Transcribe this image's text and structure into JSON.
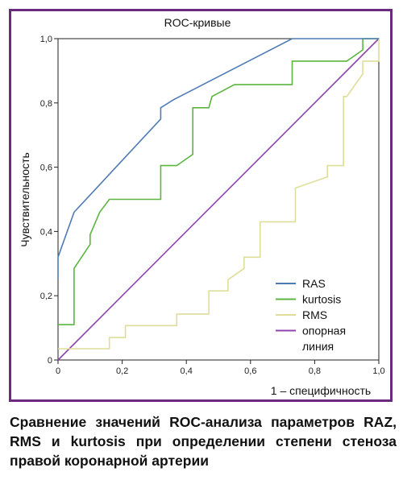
{
  "chart_data": {
    "type": "line",
    "title": "ROC-кривые",
    "xlabel": "1 – специфичность",
    "ylabel": "Чувствительность",
    "xlim": [
      0,
      1
    ],
    "ylim": [
      0,
      1
    ],
    "x_ticks": [
      "0",
      "0,2",
      "0,4",
      "0,6",
      "0,8",
      "1,0"
    ],
    "y_ticks": [
      "0",
      "0,2",
      "0,4",
      "0,6",
      "0,8",
      "1,0"
    ],
    "grid": false,
    "legend_position": "bottom-right",
    "series": [
      {
        "name": "RAS",
        "color": "#4f7bb5",
        "points": [
          [
            0,
            0.25
          ],
          [
            0,
            0.32
          ],
          [
            0.05,
            0.46
          ],
          [
            0.32,
            0.75
          ],
          [
            0.32,
            0.785
          ],
          [
            0.36,
            0.81
          ],
          [
            0.73,
            1.0
          ],
          [
            1.0,
            1.0
          ]
        ]
      },
      {
        "name": "kurtosis",
        "color": "#5cb53f",
        "points": [
          [
            0,
            0.11
          ],
          [
            0.05,
            0.11
          ],
          [
            0.05,
            0.285
          ],
          [
            0.1,
            0.36
          ],
          [
            0.1,
            0.39
          ],
          [
            0.13,
            0.46
          ],
          [
            0.16,
            0.5
          ],
          [
            0.32,
            0.5
          ],
          [
            0.32,
            0.605
          ],
          [
            0.37,
            0.605
          ],
          [
            0.42,
            0.64
          ],
          [
            0.42,
            0.785
          ],
          [
            0.47,
            0.785
          ],
          [
            0.48,
            0.82
          ],
          [
            0.55,
            0.857
          ],
          [
            0.73,
            0.857
          ],
          [
            0.73,
            0.93
          ],
          [
            0.9,
            0.93
          ],
          [
            0.95,
            0.965
          ],
          [
            0.95,
            1.0
          ],
          [
            1.0,
            1.0
          ]
        ]
      },
      {
        "name": "RMS",
        "color": "#dede9a",
        "points": [
          [
            0,
            0.035
          ],
          [
            0.16,
            0.035
          ],
          [
            0.16,
            0.07
          ],
          [
            0.21,
            0.07
          ],
          [
            0.21,
            0.107
          ],
          [
            0.37,
            0.107
          ],
          [
            0.37,
            0.143
          ],
          [
            0.47,
            0.143
          ],
          [
            0.47,
            0.215
          ],
          [
            0.53,
            0.215
          ],
          [
            0.53,
            0.25
          ],
          [
            0.58,
            0.285
          ],
          [
            0.58,
            0.32
          ],
          [
            0.63,
            0.32
          ],
          [
            0.63,
            0.43
          ],
          [
            0.74,
            0.43
          ],
          [
            0.74,
            0.535
          ],
          [
            0.84,
            0.57
          ],
          [
            0.84,
            0.605
          ],
          [
            0.89,
            0.605
          ],
          [
            0.89,
            0.82
          ],
          [
            0.9,
            0.82
          ],
          [
            0.95,
            0.89
          ],
          [
            0.95,
            0.93
          ],
          [
            1.0,
            0.93
          ],
          [
            1.0,
            1.0
          ]
        ]
      },
      {
        "name": "опорная линия",
        "color": "#8e44ad",
        "points": [
          [
            0,
            0
          ],
          [
            1,
            1
          ]
        ]
      }
    ],
    "legend_lines": [
      {
        "label": "RAS",
        "color": "#4f7bb5"
      },
      {
        "label": "kurtosis",
        "color": "#5cb53f"
      },
      {
        "label": "RMS",
        "color": "#dede9a"
      },
      {
        "label": "опорная",
        "color": "#8e44ad"
      },
      {
        "label": "линия",
        "color": null
      }
    ]
  },
  "caption": "Сравнение значений ROC-анализа параметров RAZ, RMS и kurtosis при определении степени стеноза правой коронарной артерии",
  "frame_color": "#6a2a80"
}
